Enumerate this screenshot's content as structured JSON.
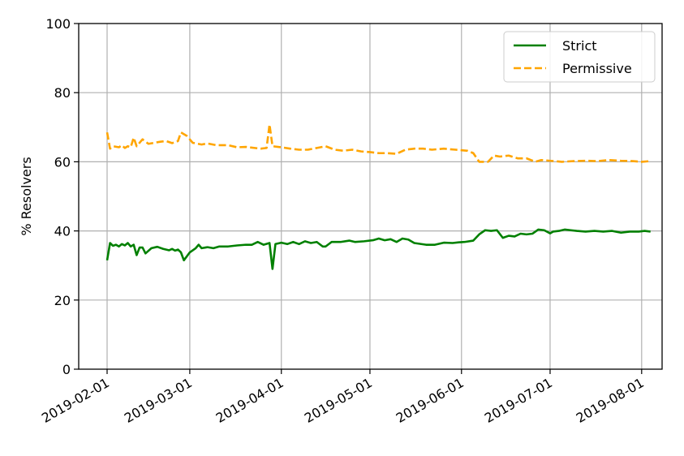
{
  "chart_data": {
    "type": "line",
    "title": "",
    "xlabel": "",
    "ylabel": "% Resolvers",
    "ylim": [
      0,
      100
    ],
    "xlim": [
      "2019-02-01",
      "2019-08-06"
    ],
    "grid": true,
    "legend": "top-right",
    "x_ticks": [
      "2019-02-01",
      "2019-03-01",
      "2019-04-01",
      "2019-05-01",
      "2019-06-01",
      "2019-07-01",
      "2019-08-01"
    ],
    "y_ticks": [
      0,
      20,
      40,
      60,
      80,
      100
    ],
    "series": [
      {
        "name": "Strict",
        "color": "#008000",
        "style": "solid",
        "points": [
          [
            "2019-02-01",
            31.5
          ],
          [
            "2019-02-02",
            36.5
          ],
          [
            "2019-02-03",
            35.7
          ],
          [
            "2019-02-04",
            36.0
          ],
          [
            "2019-02-05",
            35.5
          ],
          [
            "2019-02-06",
            36.2
          ],
          [
            "2019-02-07",
            35.8
          ],
          [
            "2019-02-08",
            36.5
          ],
          [
            "2019-02-09",
            35.5
          ],
          [
            "2019-02-10",
            36.0
          ],
          [
            "2019-02-11",
            33.0
          ],
          [
            "2019-02-12",
            35.2
          ],
          [
            "2019-02-13",
            35.2
          ],
          [
            "2019-02-14",
            33.5
          ],
          [
            "2019-02-16",
            35.0
          ],
          [
            "2019-02-18",
            35.4
          ],
          [
            "2019-02-20",
            34.8
          ],
          [
            "2019-02-22",
            34.4
          ],
          [
            "2019-02-23",
            34.8
          ],
          [
            "2019-02-24",
            34.3
          ],
          [
            "2019-02-25",
            34.6
          ],
          [
            "2019-02-26",
            33.8
          ],
          [
            "2019-02-27",
            31.5
          ],
          [
            "2019-03-01",
            33.8
          ],
          [
            "2019-03-03",
            35.0
          ],
          [
            "2019-03-04",
            36.0
          ],
          [
            "2019-03-05",
            35.0
          ],
          [
            "2019-03-07",
            35.3
          ],
          [
            "2019-03-09",
            35.0
          ],
          [
            "2019-03-11",
            35.5
          ],
          [
            "2019-03-14",
            35.5
          ],
          [
            "2019-03-17",
            35.8
          ],
          [
            "2019-03-20",
            36.0
          ],
          [
            "2019-03-22",
            36.0
          ],
          [
            "2019-03-24",
            36.8
          ],
          [
            "2019-03-26",
            36.0
          ],
          [
            "2019-03-28",
            36.5
          ],
          [
            "2019-03-29",
            29.0
          ],
          [
            "2019-03-30",
            36.2
          ],
          [
            "2019-04-01",
            36.6
          ],
          [
            "2019-04-03",
            36.2
          ],
          [
            "2019-04-05",
            36.8
          ],
          [
            "2019-04-07",
            36.2
          ],
          [
            "2019-04-09",
            37.0
          ],
          [
            "2019-04-11",
            36.5
          ],
          [
            "2019-04-13",
            36.8
          ],
          [
            "2019-04-15",
            35.5
          ],
          [
            "2019-04-16",
            35.5
          ],
          [
            "2019-04-18",
            36.8
          ],
          [
            "2019-04-21",
            36.8
          ],
          [
            "2019-04-24",
            37.2
          ],
          [
            "2019-04-26",
            36.8
          ],
          [
            "2019-04-29",
            37.0
          ],
          [
            "2019-05-02",
            37.3
          ],
          [
            "2019-05-04",
            37.8
          ],
          [
            "2019-05-06",
            37.3
          ],
          [
            "2019-05-08",
            37.6
          ],
          [
            "2019-05-10",
            36.8
          ],
          [
            "2019-05-12",
            37.8
          ],
          [
            "2019-05-14",
            37.5
          ],
          [
            "2019-05-16",
            36.5
          ],
          [
            "2019-05-20",
            36.0
          ],
          [
            "2019-05-23",
            36.0
          ],
          [
            "2019-05-26",
            36.6
          ],
          [
            "2019-05-29",
            36.5
          ],
          [
            "2019-05-31",
            36.7
          ],
          [
            "2019-06-02",
            36.8
          ],
          [
            "2019-06-05",
            37.2
          ],
          [
            "2019-06-07",
            39.0
          ],
          [
            "2019-06-09",
            40.2
          ],
          [
            "2019-06-11",
            40.0
          ],
          [
            "2019-06-13",
            40.2
          ],
          [
            "2019-06-15",
            38.0
          ],
          [
            "2019-06-17",
            38.6
          ],
          [
            "2019-06-19",
            38.4
          ],
          [
            "2019-06-21",
            39.2
          ],
          [
            "2019-06-23",
            39.0
          ],
          [
            "2019-06-25",
            39.2
          ],
          [
            "2019-06-27",
            40.4
          ],
          [
            "2019-06-29",
            40.2
          ],
          [
            "2019-07-01",
            39.3
          ],
          [
            "2019-07-02",
            39.8
          ],
          [
            "2019-07-04",
            40.0
          ],
          [
            "2019-07-06",
            40.4
          ],
          [
            "2019-07-08",
            40.2
          ],
          [
            "2019-07-10",
            40.0
          ],
          [
            "2019-07-13",
            39.8
          ],
          [
            "2019-07-16",
            40.0
          ],
          [
            "2019-07-19",
            39.8
          ],
          [
            "2019-07-22",
            40.0
          ],
          [
            "2019-07-25",
            39.5
          ],
          [
            "2019-07-28",
            39.8
          ],
          [
            "2019-07-31",
            39.8
          ],
          [
            "2019-08-02",
            40.0
          ],
          [
            "2019-08-04",
            39.8
          ]
        ]
      },
      {
        "name": "Permissive",
        "color": "#ffa500",
        "style": "dashed",
        "points": [
          [
            "2019-02-01",
            68.5
          ],
          [
            "2019-02-02",
            63.8
          ],
          [
            "2019-02-03",
            64.5
          ],
          [
            "2019-02-05",
            64.2
          ],
          [
            "2019-02-06",
            64.8
          ],
          [
            "2019-02-07",
            64.0
          ],
          [
            "2019-02-08",
            64.5
          ],
          [
            "2019-02-09",
            64.2
          ],
          [
            "2019-02-10",
            67.0
          ],
          [
            "2019-02-11",
            64.5
          ],
          [
            "2019-02-13",
            66.5
          ],
          [
            "2019-02-15",
            65.2
          ],
          [
            "2019-02-17",
            65.5
          ],
          [
            "2019-02-19",
            65.8
          ],
          [
            "2019-02-21",
            66.0
          ],
          [
            "2019-02-23",
            65.4
          ],
          [
            "2019-02-25",
            66.0
          ],
          [
            "2019-02-26",
            68.5
          ],
          [
            "2019-02-28",
            67.5
          ],
          [
            "2019-03-02",
            65.5
          ],
          [
            "2019-03-05",
            65.0
          ],
          [
            "2019-03-07",
            65.3
          ],
          [
            "2019-03-10",
            64.8
          ],
          [
            "2019-03-14",
            64.8
          ],
          [
            "2019-03-17",
            64.2
          ],
          [
            "2019-03-20",
            64.3
          ],
          [
            "2019-03-23",
            64.0
          ],
          [
            "2019-03-25",
            63.8
          ],
          [
            "2019-03-27",
            64.0
          ],
          [
            "2019-03-28",
            70.8
          ],
          [
            "2019-03-29",
            64.5
          ],
          [
            "2019-04-01",
            64.2
          ],
          [
            "2019-04-04",
            63.8
          ],
          [
            "2019-04-07",
            63.5
          ],
          [
            "2019-04-10",
            63.5
          ],
          [
            "2019-04-13",
            64.0
          ],
          [
            "2019-04-16",
            64.5
          ],
          [
            "2019-04-19",
            63.5
          ],
          [
            "2019-04-22",
            63.2
          ],
          [
            "2019-04-25",
            63.5
          ],
          [
            "2019-04-28",
            63.0
          ],
          [
            "2019-05-01",
            62.8
          ],
          [
            "2019-05-04",
            62.5
          ],
          [
            "2019-05-07",
            62.5
          ],
          [
            "2019-05-10",
            62.3
          ],
          [
            "2019-05-13",
            63.5
          ],
          [
            "2019-05-16",
            63.8
          ],
          [
            "2019-05-19",
            63.8
          ],
          [
            "2019-05-22",
            63.5
          ],
          [
            "2019-05-26",
            63.8
          ],
          [
            "2019-05-30",
            63.5
          ],
          [
            "2019-06-03",
            63.2
          ],
          [
            "2019-06-05",
            62.5
          ],
          [
            "2019-06-07",
            60.0
          ],
          [
            "2019-06-10",
            60.0
          ],
          [
            "2019-06-12",
            61.8
          ],
          [
            "2019-06-14",
            61.5
          ],
          [
            "2019-06-17",
            61.8
          ],
          [
            "2019-06-20",
            61.0
          ],
          [
            "2019-06-23",
            61.0
          ],
          [
            "2019-06-26",
            60.0
          ],
          [
            "2019-06-28",
            60.5
          ],
          [
            "2019-07-01",
            60.3
          ],
          [
            "2019-07-05",
            60.0
          ],
          [
            "2019-07-09",
            60.2
          ],
          [
            "2019-07-13",
            60.3
          ],
          [
            "2019-07-17",
            60.2
          ],
          [
            "2019-07-21",
            60.5
          ],
          [
            "2019-07-25",
            60.3
          ],
          [
            "2019-07-29",
            60.2
          ],
          [
            "2019-08-01",
            60.0
          ],
          [
            "2019-08-04",
            60.2
          ]
        ]
      }
    ]
  }
}
